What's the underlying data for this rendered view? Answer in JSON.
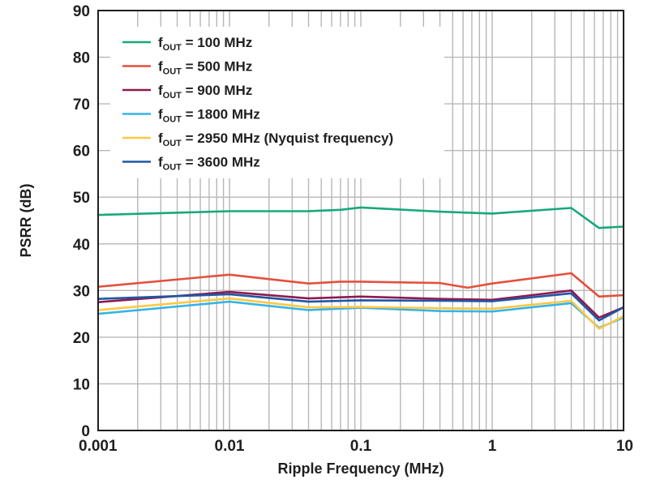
{
  "chart_data": {
    "type": "line",
    "title": "",
    "xlabel": "Ripple Frequency (MHz)",
    "ylabel": "PSRR (dB)",
    "xscale": "log",
    "xlim": [
      0.001,
      10
    ],
    "ylim": [
      0,
      90
    ],
    "xticks": [
      0.001,
      0.01,
      0.1,
      1,
      10
    ],
    "xtick_labels": [
      "0.001",
      "0.01",
      "0.1",
      "1",
      "10"
    ],
    "yticks": [
      0,
      10,
      20,
      30,
      40,
      50,
      60,
      70,
      80,
      90
    ],
    "ytick_labels": [
      "0",
      "10",
      "20",
      "30",
      "40",
      "50",
      "60",
      "70",
      "80",
      "90"
    ],
    "grid": true,
    "legend_position": "top-left",
    "series": [
      {
        "label_main": "f",
        "label_sub": "OUT",
        "label_rest": " = 100 MHz",
        "color": "#18a87c",
        "x": [
          0.001,
          0.01,
          0.04,
          0.07,
          0.1,
          0.4,
          1,
          4,
          6.5,
          10
        ],
        "y": [
          46.2,
          47.0,
          47.0,
          47.3,
          47.8,
          46.9,
          46.5,
          47.7,
          43.4,
          43.7
        ]
      },
      {
        "label_main": "f",
        "label_sub": "OUT",
        "label_rest": " = 500 MHz",
        "color": "#e4503c",
        "x": [
          0.001,
          0.01,
          0.04,
          0.07,
          0.1,
          0.4,
          0.65,
          1,
          4,
          6.5,
          10
        ],
        "y": [
          30.8,
          33.4,
          31.5,
          31.9,
          31.9,
          31.6,
          30.6,
          31.5,
          33.7,
          28.7,
          29.0
        ]
      },
      {
        "label_main": "f",
        "label_sub": "OUT",
        "label_rest": " = 900 MHz",
        "color": "#8e1a4f",
        "x": [
          0.001,
          0.01,
          0.04,
          0.1,
          0.4,
          1,
          4,
          6.5,
          10
        ],
        "y": [
          27.5,
          29.7,
          28.3,
          28.7,
          28.2,
          28.0,
          30.0,
          24.2,
          26.4
        ]
      },
      {
        "label_main": "f",
        "label_sub": "OUT",
        "label_rest": " = 1800 MHz",
        "color": "#36b4e6",
        "x": [
          0.001,
          0.01,
          0.04,
          0.1,
          0.4,
          1,
          4,
          6.5,
          10
        ],
        "y": [
          25.0,
          27.6,
          25.8,
          26.3,
          25.6,
          25.5,
          27.3,
          22.0,
          24.2
        ]
      },
      {
        "label_main": "f",
        "label_sub": "OUT",
        "label_rest": " = 2950 MHz (Nyquist frequency)",
        "color": "#ffc845",
        "x": [
          0.001,
          0.01,
          0.04,
          0.1,
          0.4,
          1,
          4,
          6.5,
          10
        ],
        "y": [
          25.8,
          28.3,
          26.4,
          26.5,
          26.2,
          26.1,
          27.8,
          21.8,
          24.5
        ]
      },
      {
        "label_main": "f",
        "label_sub": "OUT",
        "label_rest": " = 3600 MHz",
        "color": "#1f57a3",
        "x": [
          0.001,
          0.01,
          0.04,
          0.1,
          0.4,
          1,
          4,
          6.5,
          10
        ],
        "y": [
          28.2,
          29.2,
          27.6,
          27.9,
          27.8,
          27.7,
          29.4,
          23.6,
          26.4
        ]
      }
    ]
  }
}
